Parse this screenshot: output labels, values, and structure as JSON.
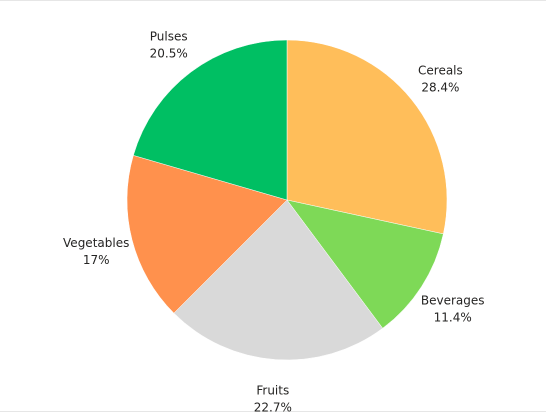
{
  "chart_data": {
    "type": "pie",
    "title": "",
    "slices": [
      {
        "label": "Cereals",
        "value": 28.4,
        "pct_label": "28.4%",
        "color": "#FFBE5A"
      },
      {
        "label": "Beverages",
        "value": 11.4,
        "pct_label": "11.4%",
        "color": "#7ED957"
      },
      {
        "label": "Fruits",
        "value": 22.7,
        "pct_label": "22.7%",
        "color": "#D9D9D9"
      },
      {
        "label": "Vegetables",
        "value": 17,
        "pct_label": "17%",
        "color": "#FF914D"
      },
      {
        "label": "Pulses",
        "value": 20.5,
        "pct_label": "20.5%",
        "color": "#00BF63"
      }
    ],
    "start_angle_deg": 0,
    "direction": "clockwise",
    "legend": "none",
    "label_placement": "outside"
  }
}
